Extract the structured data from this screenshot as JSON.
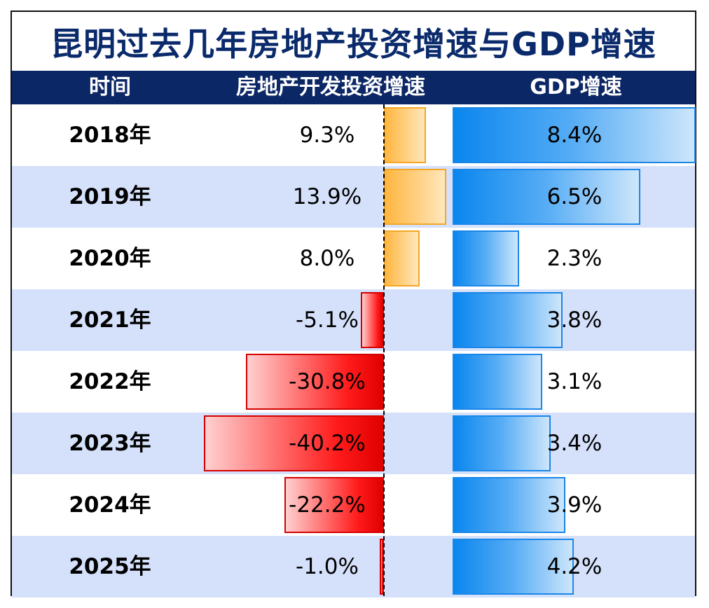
{
  "title": "昆明过去几年房地产投资增速与GDP增速",
  "headers": {
    "time": "时间",
    "realestate": "房地产开发投资增速",
    "gdp": "GDP增速"
  },
  "colors": {
    "header_bg": "#0c2766",
    "title": "#0a2a6b",
    "positive": "#ffb640",
    "negative": "#ff1a1a",
    "gdp": "#0a86ee",
    "alt_row": "#d5e1fb"
  },
  "chart_data": {
    "type": "bar",
    "title": "昆明过去几年房地产投资增速与GDP增速",
    "categories": [
      "2018年",
      "2019年",
      "2020年",
      "2021年",
      "2022年",
      "2023年",
      "2024年",
      "2025年"
    ],
    "series": [
      {
        "name": "房地产开发投资增速",
        "values": [
          9.3,
          13.9,
          8.0,
          -5.1,
          -30.8,
          -40.2,
          -22.2,
          -1.0
        ],
        "labels": [
          "9.3%",
          "13.9%",
          "8.0%",
          "-5.1%",
          "-30.8%",
          "-40.2%",
          "-22.2%",
          "-1.0%"
        ]
      },
      {
        "name": "GDP增速",
        "values": [
          8.4,
          6.5,
          2.3,
          3.8,
          3.1,
          3.4,
          3.9,
          4.2
        ],
        "labels": [
          "8.4%",
          "6.5%",
          "2.3%",
          "3.8%",
          "3.1%",
          "3.4%",
          "3.9%",
          "4.2%"
        ]
      }
    ]
  }
}
